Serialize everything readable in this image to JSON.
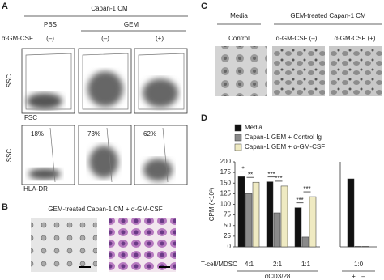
{
  "panels": {
    "a": {
      "label": "A",
      "header": "Capan-1 CM",
      "groups": [
        "PBS",
        "GEM"
      ],
      "row_label": "α-GM-CSF",
      "conditions": [
        "(–)",
        "(–)",
        "(+)"
      ],
      "top_x": "FSC",
      "top_y": "SSC",
      "bottom_x": "HLA-DR",
      "bottom_y": "SSC",
      "percentages": [
        "18%",
        "73%",
        "62%"
      ]
    },
    "b": {
      "label": "B",
      "caption": "GEM-treated Capan-1 CM + α-GM-CSF"
    },
    "c": {
      "label": "C",
      "groups": [
        "Media",
        "GEM-treated Capan-1 CM"
      ],
      "conditions": [
        "Control",
        "α-GM-CSF (–)",
        "α-GM-CSF (+)"
      ]
    },
    "d": {
      "label": "D"
    }
  },
  "chart_data": {
    "type": "bar",
    "ylabel": "CPM (×10³)",
    "category_axis_label": "T-cell/MDSC",
    "group_label": "αCD3/28",
    "categories": [
      "4:1",
      "2:1",
      "1:1"
    ],
    "series": [
      {
        "name": "Media",
        "color": "#111111",
        "values": [
          165,
          153,
          92
        ]
      },
      {
        "name": "Capan-1 GEM + Control Ig",
        "color": "#8a8a8a",
        "values": [
          125,
          80,
          23
        ]
      },
      {
        "name": "Capan-1 GEM + α-GM-CSF",
        "color": "#efeac2",
        "values": [
          152,
          143,
          118
        ]
      }
    ],
    "significance": [
      [
        "*",
        "**"
      ],
      [
        "***",
        "***"
      ],
      [
        "***",
        "***"
      ]
    ],
    "inset": {
      "category": "1:0",
      "values": [
        160,
        1,
        1
      ],
      "signs": [
        "+",
        "–"
      ]
    },
    "ylim": [
      0,
      200
    ],
    "yticks": [
      0,
      25,
      50,
      75,
      100,
      125,
      150,
      175,
      200
    ]
  }
}
